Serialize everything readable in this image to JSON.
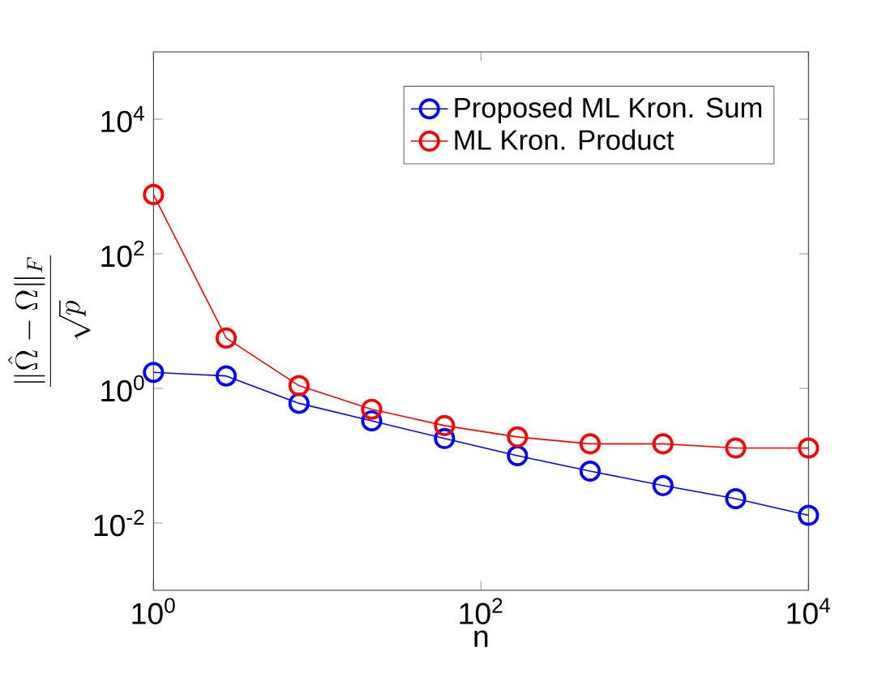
{
  "chart_data": {
    "type": "line",
    "xlabel": "n",
    "ylabel": "\\frac{\\|\\hat{\\Omega}-\\Omega\\|_F}{\\sqrt{p}}",
    "x": [
      1,
      2.78,
      7.74,
      21.5,
      59.9,
      167,
      464,
      1292,
      3594,
      10000
    ],
    "series": [
      {
        "name": "Proposed ML Kron. Sum",
        "color": "#0000ff",
        "values": [
          1.73,
          1.53,
          0.6,
          0.33,
          0.18,
          0.1,
          0.059,
          0.036,
          0.023,
          0.013
        ]
      },
      {
        "name": "ML Kron. Product",
        "color": "#ff0000",
        "values": [
          760,
          5.6,
          1.1,
          0.49,
          0.28,
          0.19,
          0.15,
          0.15,
          0.13,
          0.13
        ]
      }
    ],
    "log": "xy",
    "xlim": [
      1,
      10000
    ],
    "ylim": [
      0.001,
      100000
    ],
    "xticks": [
      {
        "value": 1,
        "label": "10$^{0}$"
      },
      {
        "value": 100,
        "label": "10$^{2}$"
      },
      {
        "value": 10000,
        "label": "10$^{4}$"
      }
    ],
    "yticks": [
      {
        "value": 0.01,
        "label": "10$^{-2}$"
      },
      {
        "value": 1,
        "label": "10$^{0}$"
      },
      {
        "value": 100,
        "label": "10$^{2}$"
      },
      {
        "value": 10000,
        "label": "10$^{4}$"
      }
    ],
    "legend": "top right",
    "marker": "circle",
    "line_style": "solid",
    "grid": false
  }
}
